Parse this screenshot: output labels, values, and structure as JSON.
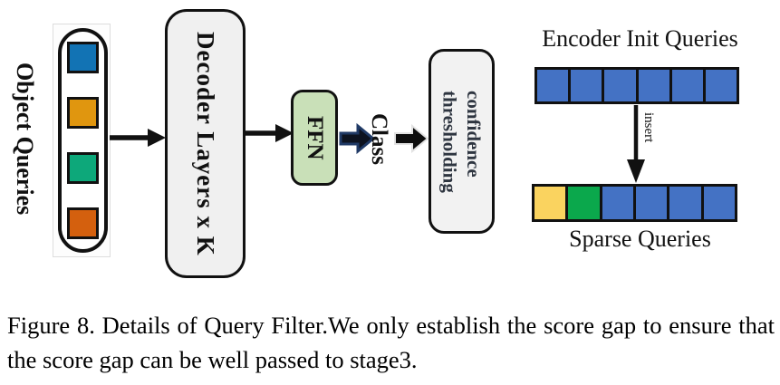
{
  "figure": {
    "object_queries": {
      "label": "Object Queries",
      "cells": [
        "#1273b4",
        "#e0960f",
        "#0da87a",
        "#d4600e"
      ]
    },
    "decoder": {
      "label": "Decoder Layers x K"
    },
    "ffn": {
      "label": "FFN"
    },
    "class_label": "Class",
    "confidence": {
      "line1": "confidence",
      "line2": "thresholding"
    },
    "encoder": {
      "title": "Encoder Init Queries",
      "cells": [
        "#4472c4",
        "#4472c4",
        "#4472c4",
        "#4472c4",
        "#4472c4",
        "#4472c4"
      ]
    },
    "insert_label": "insert",
    "sparse": {
      "title": "Sparse Queries",
      "cells": [
        "#fad35f",
        "#0ba84c",
        "#4472c4",
        "#4472c4",
        "#4472c4",
        "#4472c4"
      ]
    }
  },
  "caption": "Figure 8. Details of Query Filter.We only establish the score gap to ensure that the score gap can be well passed to stage3.",
  "colors": {
    "box_gray": "#f0f0f0",
    "conf_gray": "#f2f2f2",
    "ffn_green": "#c9e0b8",
    "confidence_text": "#2e3540",
    "row_blue": "#4472c4",
    "navy_arrow_stroke": "#203a66",
    "arrow_black": "#111111"
  }
}
